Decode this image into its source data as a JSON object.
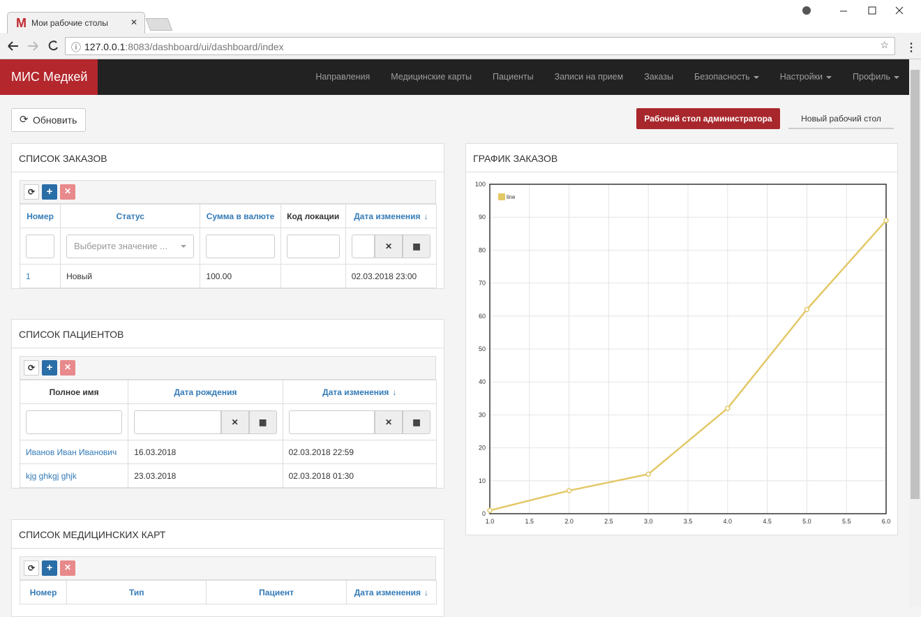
{
  "browser": {
    "tab_title": "Мои рабочие столы",
    "url_host": "127.0.0.1",
    "url_rest": ":8083/dashboard/ui/dashboard/index"
  },
  "navbar": {
    "brand": "МИС Медкей",
    "items": [
      {
        "label": "Направления",
        "dropdown": false
      },
      {
        "label": "Медицинские карты",
        "dropdown": false
      },
      {
        "label": "Пациенты",
        "dropdown": false
      },
      {
        "label": "Записи на прием",
        "dropdown": false
      },
      {
        "label": "Заказы",
        "dropdown": false
      },
      {
        "label": "Безопасность",
        "dropdown": true
      },
      {
        "label": "Настройки",
        "dropdown": true
      },
      {
        "label": "Профиль",
        "dropdown": true
      }
    ]
  },
  "toolbar": {
    "refresh": "Обновить",
    "tabs": [
      "Рабочий стол администратора",
      "Новый рабочий стол"
    ],
    "active_tab": 0
  },
  "panels": [
    {
      "title": "СПИСОК ЗАКАЗОВ",
      "columns": [
        {
          "label": "Номер",
          "link": true,
          "sorted": false
        },
        {
          "label": "Статус",
          "link": true,
          "sorted": false
        },
        {
          "label": "Сумма в валюте",
          "link": true,
          "sorted": false
        },
        {
          "label": "Код локации",
          "link": false,
          "sorted": false
        },
        {
          "label": "Дата изменения",
          "link": true,
          "sorted": true
        }
      ],
      "filters": [
        "text",
        "select",
        "text",
        "text",
        "date"
      ],
      "select_placeholder": "Выберите значение ...",
      "rows": [
        [
          "1",
          "Новый",
          "100.00",
          null,
          "02.03.2018 23:00"
        ]
      ]
    },
    {
      "title": "СПИСОК ПАЦИЕНТОВ",
      "columns": [
        {
          "label": "Полное имя",
          "link": false,
          "sorted": false
        },
        {
          "label": "Дата рождения",
          "link": true,
          "sorted": false
        },
        {
          "label": "Дата изменения",
          "link": true,
          "sorted": true
        }
      ],
      "filters": [
        "text",
        "date",
        "date"
      ],
      "rows": [
        [
          "Иванов Иван Иванович",
          "16.03.2018",
          "02.03.2018 22:59"
        ],
        [
          "kjg ghkgj ghjk",
          "23.03.2018",
          "02.03.2018 01:30"
        ]
      ]
    },
    {
      "title": "СПИСОК МЕДИЦИНСКИХ КАРТ",
      "columns": [
        {
          "label": "Номер",
          "link": true,
          "sorted": false
        },
        {
          "label": "Тип",
          "link": true,
          "sorted": false
        },
        {
          "label": "Пациент",
          "link": true,
          "sorted": false
        },
        {
          "label": "Дата изменения",
          "link": true,
          "sorted": true
        }
      ],
      "filters": [],
      "rows": []
    }
  ],
  "chart_data": {
    "type": "line",
    "title": "ГРАФИК ЗАКАЗОВ",
    "x": [
      1,
      2,
      3,
      4,
      5,
      6
    ],
    "series": [
      {
        "name": "line",
        "color": "#e3c867",
        "values": [
          1,
          7,
          12,
          32,
          62,
          89
        ]
      }
    ],
    "xlim": [
      1,
      6
    ],
    "xticks": [
      {
        "value": 1,
        "label": "1.0"
      },
      {
        "value": 1.5,
        "label": "1.5"
      },
      {
        "value": 2,
        "label": "2.0"
      },
      {
        "value": 2.5,
        "label": "2.5"
      },
      {
        "value": 3,
        "label": "3.0"
      },
      {
        "value": 3.5,
        "label": "3.5"
      },
      {
        "value": 4,
        "label": "4.0"
      },
      {
        "value": 4.5,
        "label": "4.5"
      },
      {
        "value": 5,
        "label": "5.0"
      },
      {
        "value": 5.5,
        "label": "5.5"
      },
      {
        "value": 6,
        "label": "6.0"
      }
    ],
    "ylim": [
      0,
      100
    ],
    "yticks": [
      0,
      10,
      20,
      30,
      40,
      50,
      60,
      70,
      80,
      90,
      100
    ],
    "grid": true,
    "legend": "top-left"
  }
}
